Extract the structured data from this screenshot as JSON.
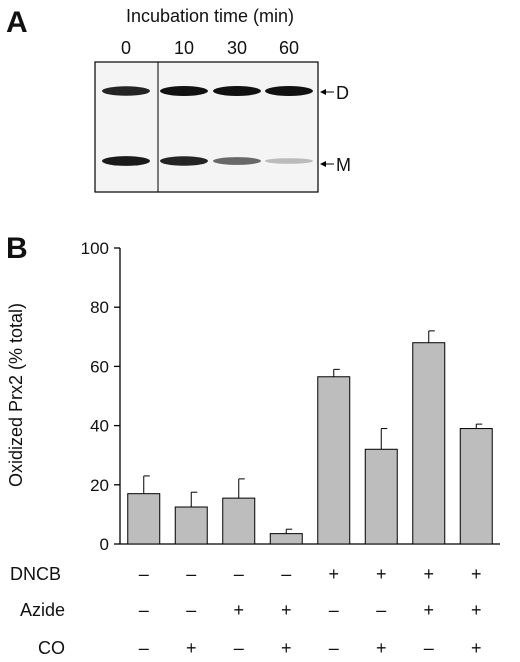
{
  "panel_a": {
    "letter": "A",
    "title": "Incubation time (min)",
    "lanes": [
      "0",
      "10",
      "30",
      "60"
    ],
    "markers": {
      "dimer": "D",
      "monomer": "M"
    },
    "band_intensity": {
      "dimer": [
        0.9,
        1.0,
        1.0,
        1.0
      ],
      "monomer": [
        0.95,
        0.9,
        0.55,
        0.12
      ]
    }
  },
  "panel_b": {
    "letter": "B",
    "factors": [
      {
        "name": "DNCB",
        "values": [
          "–",
          "–",
          "–",
          "–",
          "+",
          "+",
          "+",
          "+"
        ]
      },
      {
        "name": "Azide",
        "values": [
          "–",
          "–",
          "+",
          "+",
          "–",
          "–",
          "+",
          "+"
        ]
      },
      {
        "name": "CO",
        "values": [
          "–",
          "+",
          "–",
          "+",
          "–",
          "+",
          "–",
          "+"
        ]
      }
    ]
  },
  "colors": {
    "bar_fill": "#bdbdbd",
    "bar_stroke": "#000000",
    "band": "#111111"
  },
  "chart_data": {
    "type": "bar",
    "ylabel": "Oxidized Prx2 (% total)",
    "xlabel": "",
    "ylim": [
      0,
      100
    ],
    "yticks": [
      0,
      20,
      40,
      60,
      80,
      100
    ],
    "grid": false,
    "series": [
      {
        "values": [
          17,
          12.5,
          15.5,
          3.5,
          56.5,
          32,
          68,
          39
        ],
        "errors": [
          6,
          5,
          6.5,
          1.5,
          2.5,
          7,
          4,
          1.5
        ]
      }
    ]
  }
}
